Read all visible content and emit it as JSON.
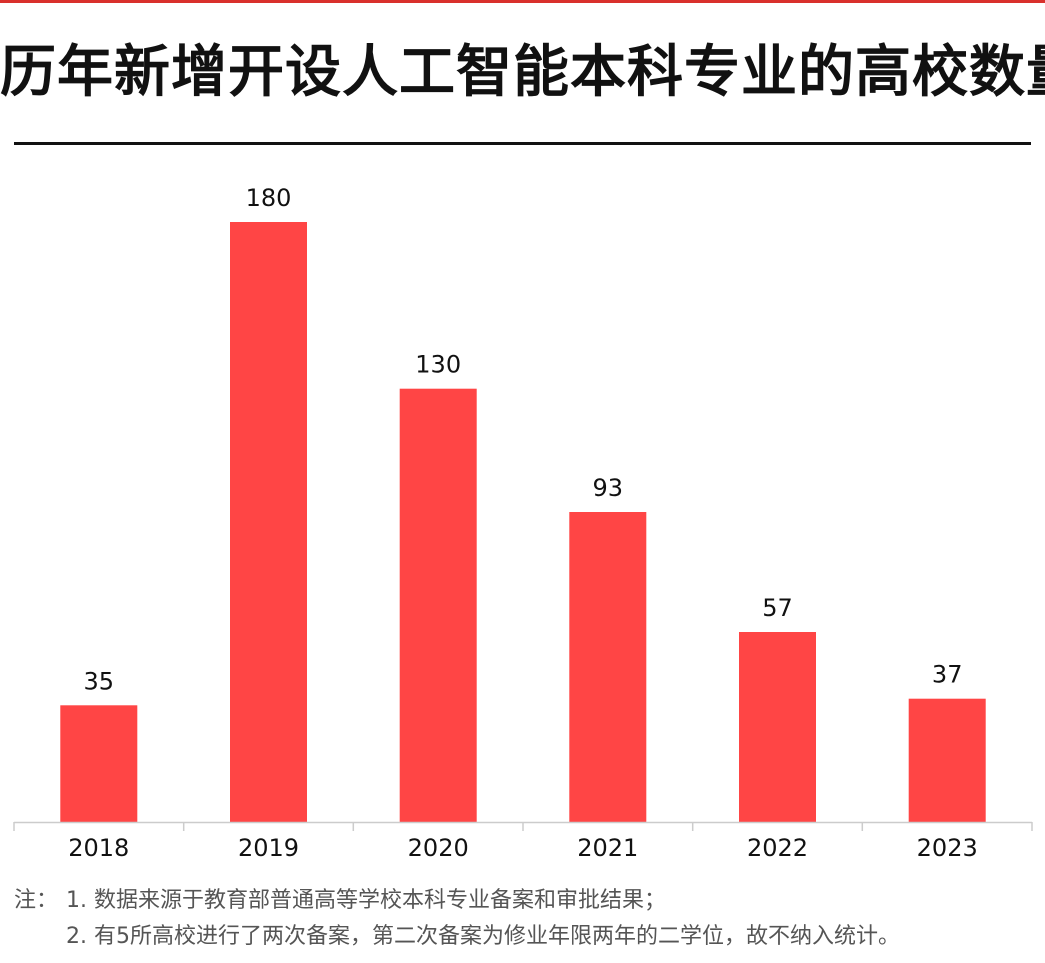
{
  "header": {
    "title": "历年新增开设人工智能本科专业的高校数量"
  },
  "chart_data": {
    "type": "bar",
    "title": "历年新增开设人工智能本科专业的高校数量",
    "categories": [
      "2018",
      "2019",
      "2020",
      "2021",
      "2022",
      "2023"
    ],
    "values": [
      35,
      180,
      130,
      93,
      57,
      37
    ],
    "data_labels": [
      "35",
      "180",
      "130",
      "93",
      "57",
      "37"
    ],
    "xlabel": "",
    "ylabel": "",
    "ylim": [
      0,
      200
    ],
    "grid": false,
    "legend": "none",
    "bar_color": "#ff4545"
  },
  "notes": {
    "prefix": "注：",
    "lines": [
      "1. 数据来源于教育部普通高等学校本科专业备案和审批结果；",
      "2. 有5所高校进行了两次备案，第二次备案为修业年限两年的二学位，故不纳入统计。"
    ]
  },
  "colors": {
    "accent_rule": "#d9302c",
    "bar": "#ff4545",
    "axis": "#cccccc",
    "text": "#111111",
    "note_text": "#555555"
  }
}
